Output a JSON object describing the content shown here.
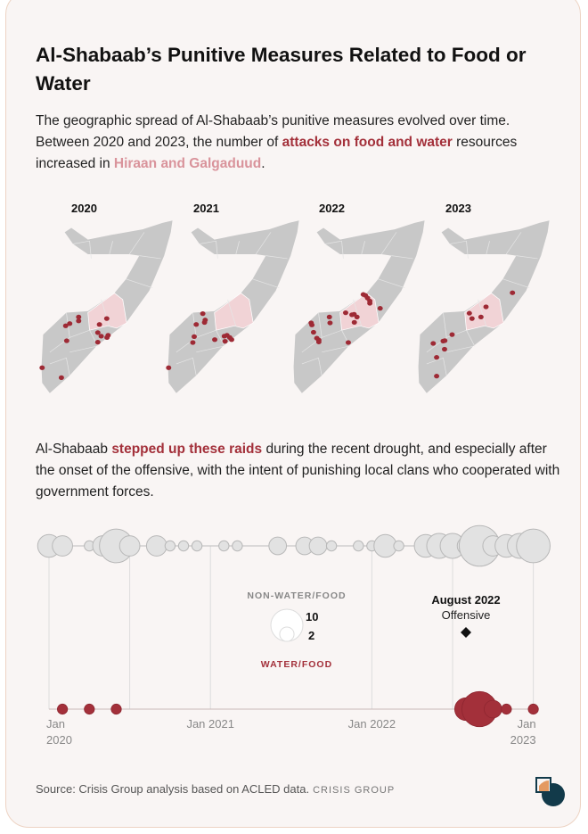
{
  "title": "Al-Shabaab’s Punitive Measures Related to Food or Water",
  "intro": {
    "part1": "The geographic spread of Al-Shabaab’s punitive measures evolved over time. Between 2020 and 2023, the number of ",
    "highlight1": "attacks on food and water",
    "part2": " resources increased in ",
    "highlight2": "Hiraan and Galgaduud",
    "part3": "."
  },
  "maps": [
    {
      "year": "2020",
      "points": [
        [
          41.05,
          0.3
        ],
        [
          42.58,
          -0.49
        ],
        [
          42.92,
          3.63
        ],
        [
          43.24,
          3.81
        ],
        [
          43.95,
          4.33
        ],
        [
          43.95,
          4.02
        ],
        [
          43.0,
          2.44
        ],
        [
          45.6,
          3.74
        ],
        [
          46.18,
          4.21
        ],
        [
          45.47,
          3.09
        ],
        [
          45.74,
          2.81
        ],
        [
          46.29,
          2.88
        ],
        [
          46.2,
          2.7
        ],
        [
          45.47,
          2.33
        ]
      ]
    },
    {
      "year": "2021",
      "points": [
        [
          41.05,
          0.3
        ],
        [
          43.76,
          4.6
        ],
        [
          43.24,
          3.74
        ],
        [
          43.95,
          4.09
        ],
        [
          43.9,
          3.9
        ],
        [
          43.08,
          2.77
        ],
        [
          42.97,
          2.3
        ],
        [
          44.71,
          2.53
        ],
        [
          45.47,
          2.81
        ],
        [
          45.68,
          2.88
        ],
        [
          46.05,
          2.53
        ],
        [
          45.53,
          2.4
        ],
        [
          45.9,
          2.7
        ]
      ]
    },
    {
      "year": "2022",
      "points": [
        [
          46.53,
          6.12
        ],
        [
          46.7,
          6.05
        ],
        [
          46.87,
          5.84
        ],
        [
          47.05,
          5.6
        ],
        [
          47.05,
          5.42
        ],
        [
          47.87,
          5.02
        ],
        [
          45.13,
          4.67
        ],
        [
          45.63,
          4.51
        ],
        [
          45.8,
          4.55
        ],
        [
          46.03,
          4.33
        ],
        [
          45.82,
          3.91
        ],
        [
          43.84,
          4.33
        ],
        [
          43.89,
          3.86
        ],
        [
          42.39,
          3.86
        ],
        [
          42.45,
          3.7
        ],
        [
          42.58,
          3.12
        ],
        [
          42.84,
          2.65
        ],
        [
          43.0,
          2.5
        ],
        [
          43.0,
          2.35
        ],
        [
          45.34,
          2.3
        ]
      ]
    },
    {
      "year": "2023",
      "points": [
        [
          48.47,
          6.26
        ],
        [
          46.37,
          5.14
        ],
        [
          45.05,
          4.63
        ],
        [
          45.26,
          4.21
        ],
        [
          45.97,
          4.33
        ],
        [
          43.68,
          2.93
        ],
        [
          42.97,
          2.42
        ],
        [
          43.1,
          2.45
        ],
        [
          42.18,
          2.23
        ],
        [
          43.08,
          1.77
        ],
        [
          42.45,
          1.12
        ],
        [
          42.45,
          -0.37
        ]
      ]
    }
  ],
  "middle": {
    "part1": "Al-Shabaab ",
    "highlight": "stepped up these raids",
    "part2": " during the recent drought, and especially after the onset of the offensive, with the intent of punishing local clans who cooperated with government forces."
  },
  "chart_data": {
    "type": "scatter",
    "title": "",
    "x_unit": "month index from Jan 2020",
    "xlim": [
      0,
      36
    ],
    "tick_labels": [
      {
        "month": 0,
        "line1": "Jan",
        "line2": "2020"
      },
      {
        "month": 12,
        "line1": "Jan 2021",
        "line2": ""
      },
      {
        "month": 24,
        "line1": "Jan 2022",
        "line2": ""
      },
      {
        "month": 36,
        "line1": "Jan",
        "line2": "2023"
      }
    ],
    "gridline_months": [
      0,
      6,
      12,
      24,
      30,
      36
    ],
    "series": [
      {
        "name": "NON-WATER/FOOD",
        "color": "#e3e3e3",
        "points": [
          [
            0,
            5
          ],
          [
            1,
            4
          ],
          [
            3,
            1
          ],
          [
            4,
            4
          ],
          [
            5,
            11
          ],
          [
            6,
            4
          ],
          [
            8,
            4
          ],
          [
            9,
            1
          ],
          [
            10,
            1
          ],
          [
            11,
            1
          ],
          [
            13,
            1
          ],
          [
            14,
            1
          ],
          [
            17,
            3
          ],
          [
            19,
            3
          ],
          [
            20,
            3
          ],
          [
            21,
            1
          ],
          [
            23,
            1
          ],
          [
            24,
            1
          ],
          [
            25,
            5
          ],
          [
            26,
            1
          ],
          [
            28,
            5
          ],
          [
            29,
            6
          ],
          [
            30,
            6
          ],
          [
            31,
            3
          ],
          [
            32,
            16
          ],
          [
            33,
            4
          ],
          [
            34,
            5
          ],
          [
            35,
            6
          ],
          [
            36,
            11
          ]
        ]
      },
      {
        "name": "WATER/FOOD",
        "color": "#a3303a",
        "points": [
          [
            1,
            1
          ],
          [
            3,
            1
          ],
          [
            5,
            1
          ],
          [
            31,
            5
          ],
          [
            32,
            12
          ],
          [
            33,
            3
          ],
          [
            34,
            1
          ],
          [
            36,
            1
          ]
        ]
      }
    ],
    "legend": {
      "top_label": "NON-WATER/FOOD",
      "bottom_label": "WATER/FOOD",
      "size_large": "10",
      "size_small": "2"
    },
    "annotation": {
      "month": 31,
      "title": "August 2022",
      "subtitle": "Offensive"
    }
  },
  "source": "Source: Crisis Group analysis based on ACLED data.",
  "brand": "CRISIS GROUP",
  "colors": {
    "accent": "#a3303a",
    "highlight": "#d9939b",
    "map": "#c8c8c8",
    "region": "#f1d3d6"
  }
}
